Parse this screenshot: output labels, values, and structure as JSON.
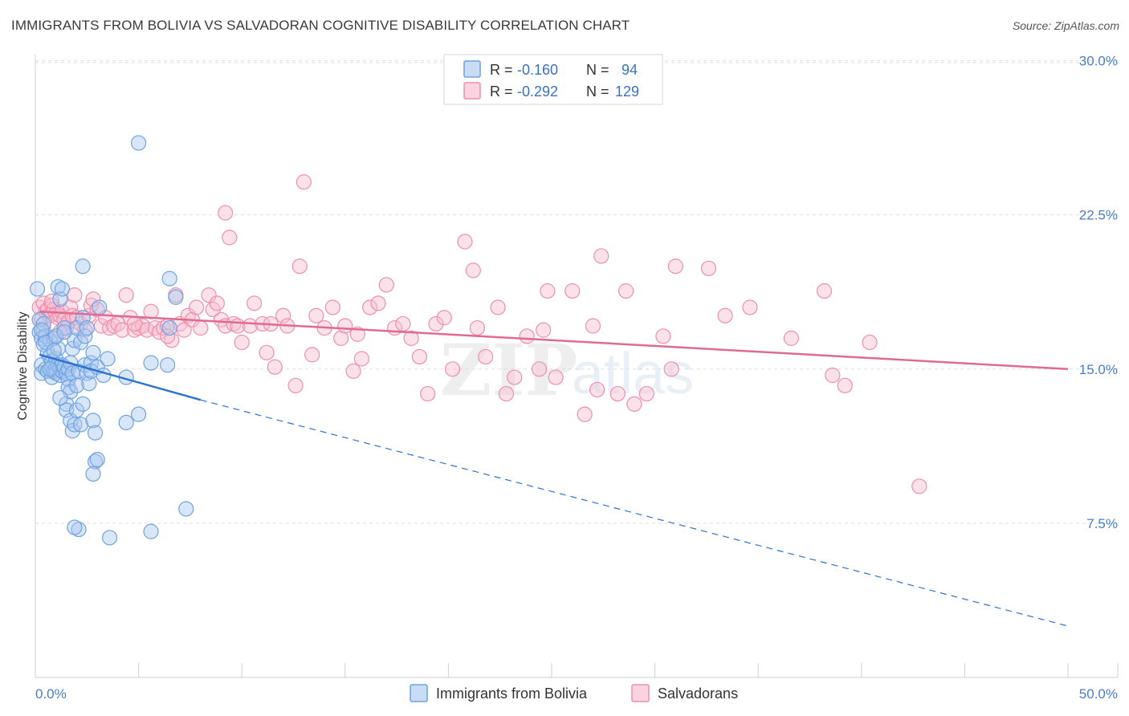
{
  "title": "IMMIGRANTS FROM BOLIVIA VS SALVADORAN COGNITIVE DISABILITY CORRELATION CHART",
  "source": "Source: ZipAtlas.com",
  "watermark": {
    "zip": "ZIP",
    "atlas": "atlas"
  },
  "legend": {
    "r_label": "R =",
    "n_label": "N =",
    "entries": [
      {
        "r": "-0.160",
        "n": "94"
      },
      {
        "r": "-0.292",
        "n": "129"
      }
    ]
  },
  "colors": {
    "blue": "#6fa3e0",
    "blue_fill": "#a9c8ef",
    "blue_line": "#2f73d0",
    "pink": "#ee8fae",
    "pink_fill": "#f6bfd0",
    "pink_line": "#e06a92",
    "tick_text": "#4a7fc6"
  },
  "chart_data": {
    "type": "scatter",
    "title": "IMMIGRANTS FROM BOLIVIA VS SALVADORAN COGNITIVE DISABILITY CORRELATION CHART",
    "xlabel": "",
    "ylabel": "Cognitive Disability",
    "xlim": [
      0,
      50
    ],
    "ylim": [
      0,
      31
    ],
    "x_tick_labels": [
      "0.0%",
      "50.0%"
    ],
    "y_ticks": [
      {
        "value": 7.5,
        "label": "7.5%"
      },
      {
        "value": 15.0,
        "label": "15.0%"
      },
      {
        "value": 22.5,
        "label": "22.5%"
      },
      {
        "value": 30.0,
        "label": "30.0%"
      }
    ],
    "grid": true,
    "series": [
      {
        "name": "Immigrants from Bolivia",
        "color": "#6fa3e0",
        "r": -0.16,
        "n": 94,
        "trend": {
          "x_solid": [
            0.2,
            8.0
          ],
          "y_solid": [
            15.7,
            13.5
          ],
          "x_dash": [
            8.0,
            50.0
          ],
          "y_dash": [
            13.5,
            2.5
          ]
        },
        "points": [
          [
            0.1,
            18.9
          ],
          [
            0.2,
            17.4
          ],
          [
            0.2,
            16.8
          ],
          [
            0.3,
            16.5
          ],
          [
            0.3,
            15.2
          ],
          [
            0.3,
            14.8
          ],
          [
            0.4,
            16.2
          ],
          [
            0.4,
            17.2
          ],
          [
            0.5,
            15.0
          ],
          [
            0.5,
            16.6
          ],
          [
            0.6,
            15.8
          ],
          [
            0.6,
            14.9
          ],
          [
            0.7,
            16.4
          ],
          [
            0.7,
            15.6
          ],
          [
            0.8,
            15.1
          ],
          [
            0.8,
            14.6
          ],
          [
            0.8,
            15.4
          ],
          [
            0.9,
            16.5
          ],
          [
            0.9,
            14.9
          ],
          [
            1.0,
            15.0
          ],
          [
            1.0,
            14.8
          ],
          [
            1.0,
            15.5
          ],
          [
            1.1,
            19.0
          ],
          [
            1.1,
            15.2
          ],
          [
            1.1,
            16.0
          ],
          [
            1.2,
            18.4
          ],
          [
            1.2,
            14.7
          ],
          [
            1.2,
            15.1
          ],
          [
            1.3,
            18.9
          ],
          [
            1.3,
            14.9
          ],
          [
            1.3,
            15.2
          ],
          [
            1.4,
            15.1
          ],
          [
            1.4,
            17.0
          ],
          [
            1.5,
            14.8
          ],
          [
            1.5,
            13.3
          ],
          [
            1.5,
            13.0
          ],
          [
            1.6,
            14.5
          ],
          [
            1.6,
            14.1
          ],
          [
            1.6,
            15.0
          ],
          [
            1.7,
            15.3
          ],
          [
            1.7,
            13.9
          ],
          [
            1.7,
            12.5
          ],
          [
            1.8,
            12.0
          ],
          [
            1.8,
            16.0
          ],
          [
            1.8,
            14.8
          ],
          [
            1.9,
            16.4
          ],
          [
            1.9,
            12.3
          ],
          [
            2.0,
            17.0
          ],
          [
            2.0,
            14.2
          ],
          [
            2.0,
            13.0
          ],
          [
            2.1,
            14.9
          ],
          [
            2.2,
            16.3
          ],
          [
            2.2,
            12.3
          ],
          [
            2.3,
            17.5
          ],
          [
            2.3,
            13.3
          ],
          [
            2.3,
            20.0
          ],
          [
            2.4,
            15.2
          ],
          [
            2.4,
            16.6
          ],
          [
            2.5,
            14.8
          ],
          [
            2.5,
            17.0
          ],
          [
            2.6,
            14.3
          ],
          [
            2.7,
            15.3
          ],
          [
            2.7,
            14.9
          ],
          [
            2.8,
            15.8
          ],
          [
            2.8,
            12.5
          ],
          [
            2.9,
            11.9
          ],
          [
            2.9,
            10.5
          ],
          [
            3.0,
            10.6
          ],
          [
            3.0,
            15.1
          ],
          [
            3.1,
            18.0
          ],
          [
            3.3,
            14.7
          ],
          [
            3.5,
            15.5
          ],
          [
            4.4,
            14.6
          ],
          [
            4.4,
            12.4
          ],
          [
            5.0,
            26.0
          ],
          [
            5.0,
            12.8
          ],
          [
            5.6,
            15.3
          ],
          [
            6.4,
            15.2
          ],
          [
            6.5,
            17.0
          ],
          [
            6.8,
            18.5
          ],
          [
            7.3,
            8.2
          ],
          [
            6.5,
            19.4
          ],
          [
            3.6,
            6.8
          ],
          [
            2.1,
            7.2
          ],
          [
            5.6,
            7.1
          ],
          [
            2.8,
            9.9
          ],
          [
            1.9,
            7.3
          ],
          [
            0.3,
            16.9
          ],
          [
            0.5,
            16.3
          ],
          [
            0.7,
            15.0
          ],
          [
            0.9,
            15.9
          ],
          [
            1.0,
            16.6
          ],
          [
            1.2,
            13.6
          ],
          [
            1.4,
            16.8
          ]
        ]
      },
      {
        "name": "Salvadorans",
        "color": "#ee8fae",
        "r": -0.292,
        "n": 129,
        "trend": {
          "x": [
            0.2,
            50.0
          ],
          "y": [
            17.8,
            15.0
          ]
        },
        "points": [
          [
            0.2,
            18.0
          ],
          [
            0.3,
            17.4
          ],
          [
            0.4,
            18.2
          ],
          [
            0.5,
            17.8
          ],
          [
            0.6,
            17.9
          ],
          [
            0.7,
            17.6
          ],
          [
            0.8,
            18.1
          ],
          [
            0.9,
            17.9
          ],
          [
            1.0,
            17.7
          ],
          [
            1.1,
            17.5
          ],
          [
            1.2,
            17.6
          ],
          [
            1.3,
            17.8
          ],
          [
            1.4,
            17.4
          ],
          [
            1.5,
            17.0
          ],
          [
            1.6,
            17.3
          ],
          [
            1.7,
            18.0
          ],
          [
            1.8,
            17.6
          ],
          [
            1.9,
            18.6
          ],
          [
            2.0,
            17.5
          ],
          [
            2.2,
            17.2
          ],
          [
            2.4,
            16.9
          ],
          [
            2.6,
            17.6
          ],
          [
            2.7,
            18.1
          ],
          [
            2.8,
            18.4
          ],
          [
            3.0,
            17.9
          ],
          [
            3.2,
            17.1
          ],
          [
            3.4,
            17.5
          ],
          [
            3.6,
            17.0
          ],
          [
            3.8,
            17.1
          ],
          [
            4.0,
            17.2
          ],
          [
            4.2,
            16.9
          ],
          [
            4.4,
            18.6
          ],
          [
            4.6,
            17.5
          ],
          [
            4.8,
            16.9
          ],
          [
            5.0,
            17.0
          ],
          [
            5.2,
            17.1
          ],
          [
            5.4,
            16.9
          ],
          [
            5.6,
            17.8
          ],
          [
            5.8,
            17.0
          ],
          [
            6.0,
            16.8
          ],
          [
            6.2,
            17.0
          ],
          [
            6.4,
            17.1
          ],
          [
            6.6,
            16.4
          ],
          [
            6.8,
            18.6
          ],
          [
            7.0,
            17.2
          ],
          [
            7.2,
            16.9
          ],
          [
            7.4,
            17.6
          ],
          [
            7.6,
            17.4
          ],
          [
            7.8,
            18.0
          ],
          [
            8.0,
            17.0
          ],
          [
            8.4,
            18.6
          ],
          [
            8.6,
            17.9
          ],
          [
            8.8,
            18.2
          ],
          [
            9.0,
            17.4
          ],
          [
            9.2,
            17.1
          ],
          [
            9.4,
            21.4
          ],
          [
            9.6,
            17.2
          ],
          [
            9.8,
            17.1
          ],
          [
            10.0,
            16.3
          ],
          [
            10.4,
            17.1
          ],
          [
            10.6,
            18.2
          ],
          [
            11.0,
            17.2
          ],
          [
            11.2,
            15.8
          ],
          [
            11.4,
            17.2
          ],
          [
            11.6,
            15.1
          ],
          [
            12.0,
            17.6
          ],
          [
            12.2,
            17.1
          ],
          [
            12.6,
            14.2
          ],
          [
            13.0,
            24.1
          ],
          [
            13.4,
            15.7
          ],
          [
            13.6,
            17.6
          ],
          [
            14.0,
            17.0
          ],
          [
            14.4,
            18.0
          ],
          [
            14.8,
            16.5
          ],
          [
            15.0,
            17.1
          ],
          [
            15.4,
            14.9
          ],
          [
            15.8,
            15.5
          ],
          [
            16.2,
            18.0
          ],
          [
            16.6,
            18.2
          ],
          [
            17.0,
            19.1
          ],
          [
            17.4,
            17.0
          ],
          [
            17.8,
            17.2
          ],
          [
            18.2,
            16.5
          ],
          [
            18.6,
            15.6
          ],
          [
            19.0,
            13.8
          ],
          [
            19.4,
            17.2
          ],
          [
            19.8,
            17.5
          ],
          [
            20.2,
            15.0
          ],
          [
            20.8,
            21.2
          ],
          [
            21.4,
            17.0
          ],
          [
            21.8,
            15.6
          ],
          [
            22.4,
            18.0
          ],
          [
            22.8,
            13.8
          ],
          [
            23.2,
            14.6
          ],
          [
            23.8,
            16.6
          ],
          [
            24.4,
            15.0
          ],
          [
            24.8,
            18.8
          ],
          [
            25.2,
            14.6
          ],
          [
            26.0,
            18.8
          ],
          [
            26.6,
            12.8
          ],
          [
            27.0,
            17.1
          ],
          [
            27.4,
            20.5
          ],
          [
            28.2,
            13.8
          ],
          [
            28.6,
            18.8
          ],
          [
            29.0,
            13.3
          ],
          [
            29.6,
            13.8
          ],
          [
            30.4,
            16.6
          ],
          [
            30.8,
            15.0
          ],
          [
            31.0,
            20.0
          ],
          [
            32.6,
            19.9
          ],
          [
            33.4,
            17.6
          ],
          [
            34.6,
            18.0
          ],
          [
            36.6,
            16.5
          ],
          [
            38.2,
            18.8
          ],
          [
            38.6,
            14.7
          ],
          [
            39.2,
            14.2
          ],
          [
            40.4,
            16.3
          ],
          [
            42.8,
            9.3
          ],
          [
            0.4,
            16.9
          ],
          [
            0.8,
            18.3
          ],
          [
            1.2,
            16.8
          ],
          [
            12.8,
            20.0
          ],
          [
            15.6,
            16.7
          ],
          [
            21.2,
            19.8
          ],
          [
            24.6,
            16.9
          ],
          [
            27.2,
            14.0
          ],
          [
            9.2,
            22.6
          ],
          [
            6.4,
            16.6
          ],
          [
            4.8,
            17.2
          ]
        ]
      }
    ],
    "legend_bottom": [
      "Immigrants from Bolivia",
      "Salvadorans"
    ]
  }
}
